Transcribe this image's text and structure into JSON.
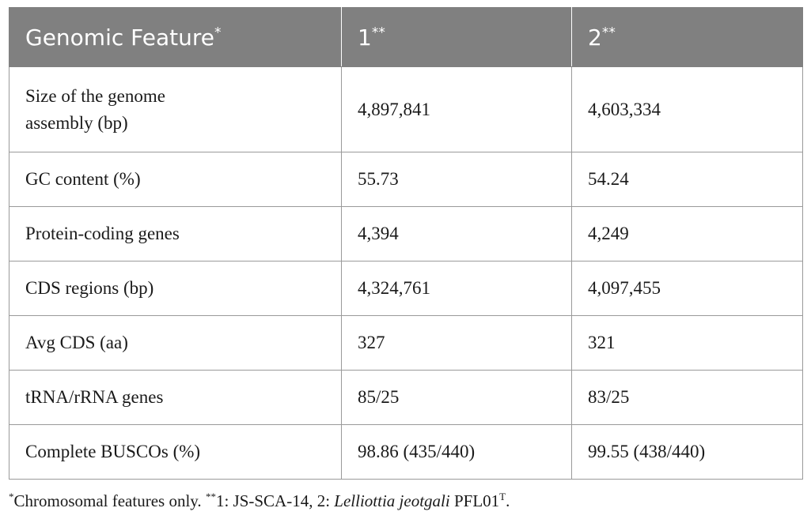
{
  "table": {
    "header": {
      "feature": "Genomic Feature",
      "feature_mark": "*",
      "col1": "1",
      "col1_mark": "**",
      "col2": "2",
      "col2_mark": "**"
    },
    "rows": [
      {
        "feature_line1": "Size of the genome",
        "feature_line2": "assembly (bp)",
        "v1": "4,897,841",
        "v2": "4,603,334"
      },
      {
        "feature": "GC content (%)",
        "v1": "55.73",
        "v2": "54.24"
      },
      {
        "feature": "Protein-coding genes",
        "v1": "4,394",
        "v2": "4,249"
      },
      {
        "feature": "CDS regions (bp)",
        "v1": "4,324,761",
        "v2": "4,097,455"
      },
      {
        "feature": "Avg CDS (aa)",
        "v1": "327",
        "v2": "321"
      },
      {
        "feature": "tRNA/rRNA genes",
        "v1": "85/25",
        "v2": "83/25"
      },
      {
        "feature": "Complete BUSCOs (%)",
        "v1": "98.86 (435/440)",
        "v2": "99.55 (438/440)"
      }
    ]
  },
  "footnote": {
    "mark1": "*",
    "text1": "Chromosomal features only. ",
    "mark2": "**",
    "text2": "1: JS-SCA-14, 2: ",
    "species": "Lelliottia jeotgali",
    "strain": " PFL01",
    "strain_sup": "T",
    "end": "."
  }
}
